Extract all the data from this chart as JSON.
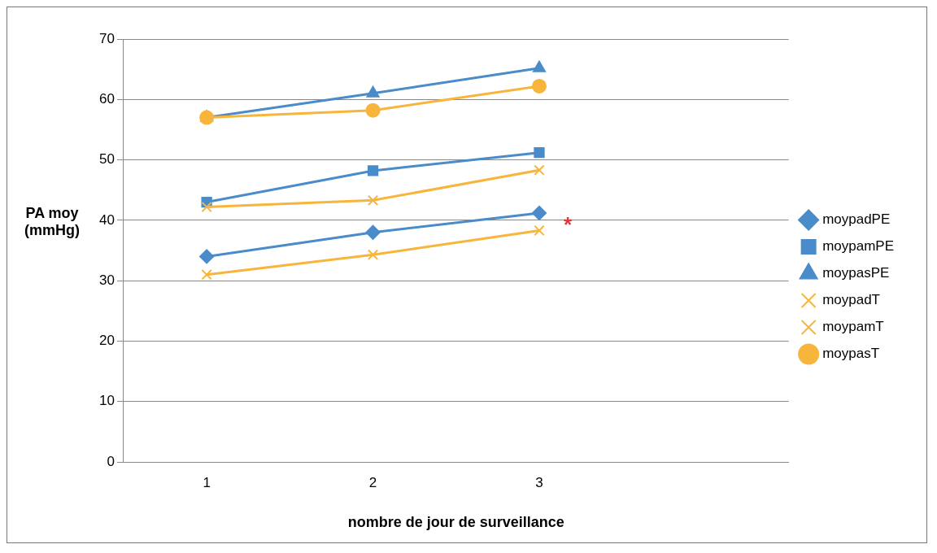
{
  "chart_data": {
    "type": "line",
    "xlabel": "nombre de jour de surveillance",
    "ylabel": "PA moy (mmHg)",
    "categories": [
      "1",
      "2",
      "3",
      null
    ],
    "ylim": [
      0,
      70
    ],
    "yticks": [
      0,
      10,
      20,
      30,
      40,
      50,
      60,
      70
    ],
    "grid": "y",
    "legend": "right",
    "series": [
      {
        "name": "moypadPE",
        "color": "#4a8bc9",
        "marker": "diamond",
        "values": [
          34,
          38,
          41.2,
          null
        ]
      },
      {
        "name": "moypamPE",
        "color": "#4a8bc9",
        "marker": "square",
        "values": [
          43,
          48.2,
          51.2,
          null
        ]
      },
      {
        "name": "moypasPE",
        "color": "#4a8bc9",
        "marker": "triangle",
        "values": [
          57,
          61,
          65.2,
          null
        ]
      },
      {
        "name": "moypadT",
        "color": "#f7b53b",
        "marker": "cross",
        "values": [
          31,
          34.3,
          38.3,
          null
        ]
      },
      {
        "name": "moypamT",
        "color": "#f7b53b",
        "marker": "cross",
        "values": [
          42.2,
          43.3,
          48.3,
          null
        ]
      },
      {
        "name": "moypasT",
        "color": "#f7b53b",
        "marker": "circle",
        "values": [
          57,
          58.2,
          62.2,
          null
        ]
      }
    ],
    "annotations": [
      {
        "text": "*",
        "x": "3",
        "y": 39
      }
    ]
  }
}
